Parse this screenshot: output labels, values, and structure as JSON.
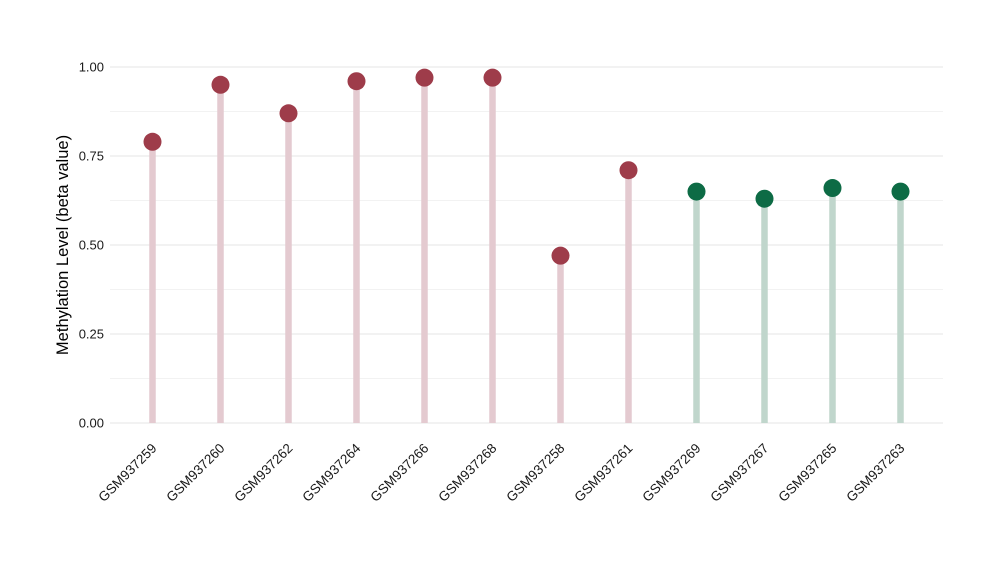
{
  "figure": {
    "background": "#ffffff"
  },
  "chart_data": {
    "type": "scatter",
    "variant": "lollipop",
    "title": "",
    "xlabel": "",
    "ylabel": "Methylation Level (beta value)",
    "categories": [
      "GSM937259",
      "GSM937260",
      "GSM937262",
      "GSM937264",
      "GSM937266",
      "GSM937268",
      "GSM937258",
      "GSM937261",
      "GSM937269",
      "GSM937267",
      "GSM937265",
      "GSM937263"
    ],
    "values": [
      0.79,
      0.95,
      0.87,
      0.96,
      0.97,
      0.97,
      0.47,
      0.71,
      0.65,
      0.63,
      0.66,
      0.65
    ],
    "groups": [
      "maroon",
      "maroon",
      "maroon",
      "maroon",
      "maroon",
      "maroon",
      "maroon",
      "maroon",
      "green",
      "green",
      "green",
      "green"
    ],
    "group_colors": {
      "maroon": {
        "dot": "#9e3c4a",
        "stem": "#e4cad0"
      },
      "green": {
        "dot": "#0d6b45",
        "stem": "#c0d6cc"
      }
    },
    "ylim": [
      0,
      1.0
    ],
    "yticks": [
      0,
      0.25,
      0.5,
      0.75,
      1.0
    ],
    "ytick_labels": [
      "0.00",
      "0.25",
      "0.50",
      "0.75",
      "1.00"
    ],
    "minor_yticks": [
      0.125,
      0.375,
      0.625,
      0.875
    ],
    "grid": "horizontal",
    "grid_major_color": "#e5e5e5",
    "grid_minor_color": "#f2f2f2",
    "legend": "none",
    "text_color": "#1a1a1a",
    "x_label_rotation_deg": 45
  }
}
